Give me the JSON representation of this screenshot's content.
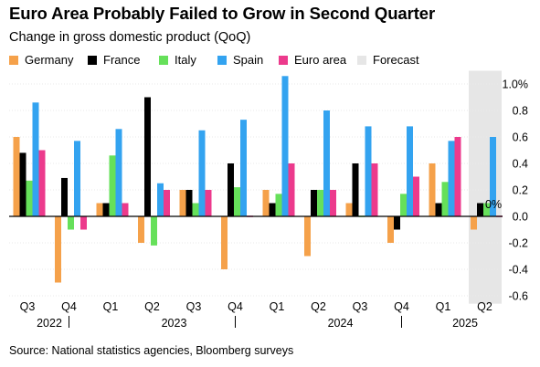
{
  "header": {
    "title": "Euro Area Probably Failed to Grow in Second Quarter",
    "subtitle": "Change in gross domestic product (QoQ)"
  },
  "legend": {
    "items": [
      {
        "label": "Germany",
        "color": "#f5a14a"
      },
      {
        "label": "France",
        "color": "#000000"
      },
      {
        "label": "Italy",
        "color": "#66e05a"
      },
      {
        "label": "Spain",
        "color": "#33a3f0"
      },
      {
        "label": "Euro area",
        "color": "#ec3a8c"
      },
      {
        "label": "Forecast",
        "color": "#e6e6e6"
      }
    ]
  },
  "footer": {
    "source": "Source: National statistics agencies, Bloomberg surveys"
  },
  "chart_data": {
    "type": "bar",
    "categories": [
      "Q3",
      "Q4",
      "Q1",
      "Q2",
      "Q3",
      "Q4",
      "Q1",
      "Q2",
      "Q3",
      "Q4",
      "Q1",
      "Q2"
    ],
    "year_labels": [
      {
        "label": "2022",
        "after_index": 0
      },
      {
        "label": "2023",
        "after_index": 3
      },
      {
        "label": "2024",
        "after_index": 7
      },
      {
        "label": "2025",
        "after_index": 10
      }
    ],
    "year_separator_indices": [
      1,
      5,
      9
    ],
    "series": [
      {
        "name": "Germany",
        "color": "#f5a14a",
        "values": [
          0.6,
          -0.5,
          0.1,
          -0.2,
          0.2,
          -0.4,
          0.2,
          -0.3,
          0.1,
          -0.2,
          0.4,
          -0.1
        ]
      },
      {
        "name": "France",
        "color": "#000000",
        "values": [
          0.48,
          0.29,
          0.1,
          0.9,
          0.2,
          0.4,
          0.1,
          0.2,
          0.4,
          -0.1,
          0.1,
          0.1
        ]
      },
      {
        "name": "Italy",
        "color": "#66e05a",
        "values": [
          0.27,
          -0.1,
          0.46,
          -0.22,
          0.1,
          0.22,
          0.17,
          0.2,
          0.0,
          0.17,
          0.26,
          0.1
        ]
      },
      {
        "name": "Spain",
        "color": "#33a3f0",
        "values": [
          0.86,
          0.57,
          0.66,
          0.25,
          0.65,
          0.73,
          1.06,
          0.8,
          0.68,
          0.68,
          0.57,
          0.6
        ]
      },
      {
        "name": "Euro area",
        "color": "#ec3a8c",
        "values": [
          0.5,
          -0.1,
          0.1,
          0.2,
          0.2,
          0.0,
          0.4,
          0.2,
          0.4,
          0.3,
          0.6,
          0.0
        ]
      }
    ],
    "forecast_index": 11,
    "forecast_color": "#e6e6e6",
    "annotation": {
      "text": "0%",
      "category_index": 11
    },
    "yticks": [
      {
        "value": 1.0,
        "label": "1.0%"
      },
      {
        "value": 0.8,
        "label": "0.8"
      },
      {
        "value": 0.6,
        "label": "0.6"
      },
      {
        "value": 0.4,
        "label": "0.4"
      },
      {
        "value": 0.2,
        "label": "0.2"
      },
      {
        "value": 0.0,
        "label": "0.0"
      },
      {
        "value": -0.2,
        "label": "-0.2"
      },
      {
        "value": -0.4,
        "label": "-0.4"
      },
      {
        "value": -0.6,
        "label": "-0.6"
      }
    ],
    "ylim": [
      -0.66,
      1.1
    ],
    "grid": true,
    "legend_position": "top"
  }
}
